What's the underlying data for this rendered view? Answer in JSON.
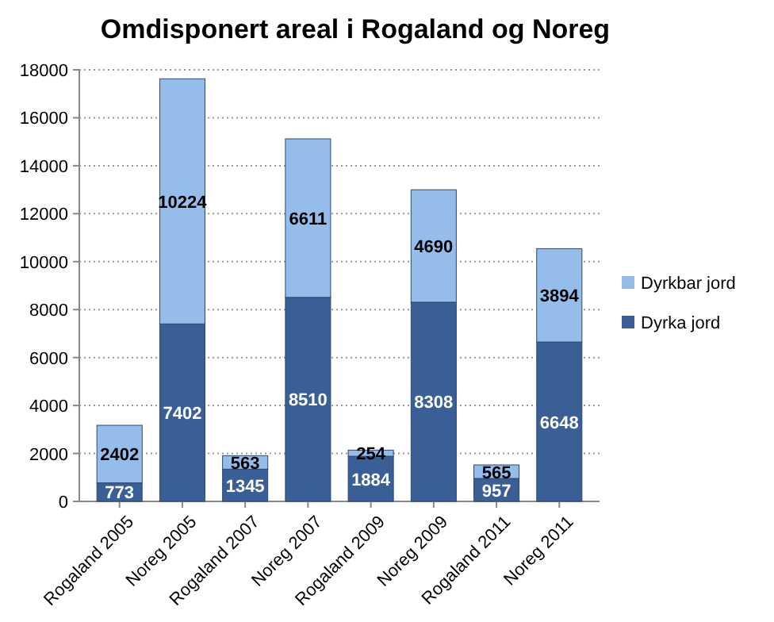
{
  "chart_data": {
    "type": "bar",
    "title": "Omdisponert areal i Rogaland og Noreg",
    "stacked": true,
    "categories": [
      "Rogaland 2005",
      "Noreg 2005",
      "Rogaland 2007",
      "Noreg 2007",
      "Rogaland 2009",
      "Noreg 2009",
      "Rogaland 2011",
      "Noreg 2011"
    ],
    "series": [
      {
        "name": "Dyrka jord",
        "color": "#3a5f96",
        "values": [
          773,
          7402,
          1345,
          8510,
          1884,
          8308,
          957,
          6648
        ]
      },
      {
        "name": "Dyrkbar jord",
        "color": "#95bde9",
        "values": [
          2402,
          10224,
          563,
          6611,
          254,
          4690,
          565,
          3894
        ]
      }
    ],
    "ylim": [
      0,
      18000
    ],
    "yticks": [
      0,
      2000,
      4000,
      6000,
      8000,
      10000,
      12000,
      14000,
      16000,
      18000
    ],
    "grid": "y",
    "legend": "right",
    "data_labels": true
  }
}
